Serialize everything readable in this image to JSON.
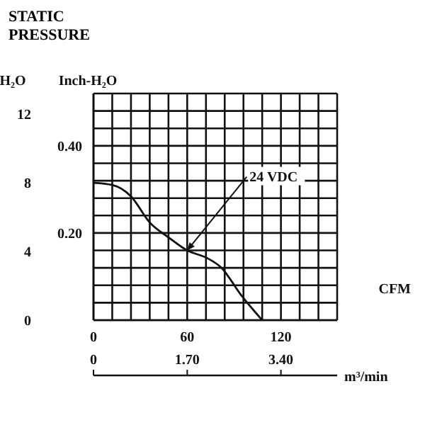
{
  "chart_data": {
    "type": "line",
    "title": "STATIC PRESSURE",
    "xlabel": "CFM",
    "ylabel": "Inch-H₂O",
    "y2label": "H₂O",
    "x2label": "m³/min",
    "x": [
      0,
      12,
      24,
      36,
      48,
      60,
      73,
      82,
      94,
      108
    ],
    "series": [
      {
        "color": "#111111",
        "values": [
          0.315,
          0.31,
          0.284,
          0.224,
          0.19,
          0.16,
          0.142,
          0.12,
          0.06,
          0
        ]
      }
    ],
    "annotations": [
      {
        "text": "24 VDC",
        "x": 60,
        "y": 0.16
      }
    ],
    "xlim": [
      0,
      156
    ],
    "xticks": [
      0,
      {
        "value": 12,
        "label": null
      },
      {
        "value": 24,
        "label": null
      },
      {
        "value": 36,
        "label": null
      },
      {
        "value": 48,
        "label": null
      },
      60,
      {
        "value": 72,
        "label": null
      },
      {
        "value": 84,
        "label": null
      },
      {
        "value": 96,
        "label": null
      },
      {
        "value": 108,
        "label": null
      },
      120,
      {
        "value": 132,
        "label": null
      },
      {
        "value": 144,
        "label": null
      },
      {
        "value": 156,
        "label": null
      }
    ],
    "ylim": [
      0,
      0.52
    ],
    "yticks": [
      {
        "value": 0,
        "label": null
      },
      {
        "value": 0.04,
        "label": null
      },
      {
        "value": 0.08,
        "label": null
      },
      {
        "value": 0.12,
        "label": null
      },
      {
        "value": 0.16,
        "label": null
      },
      {
        "value": 0.2,
        "label": "0.20"
      },
      {
        "value": 0.24,
        "label": null
      },
      {
        "value": 0.28,
        "label": null
      },
      {
        "value": 0.32,
        "label": null
      },
      {
        "value": 0.36,
        "label": null
      },
      {
        "value": 0.4,
        "label": "0.40"
      },
      {
        "value": 0.44,
        "label": null
      },
      {
        "value": 0.48,
        "label": null
      },
      {
        "value": 0.52,
        "label": null
      }
    ],
    "y2lim": [
      0,
      13.2
    ],
    "y2ticks": [
      0,
      4,
      8,
      12
    ],
    "x2lim": [
      0,
      4.42
    ],
    "x2ticks": [
      0,
      {
        "value": 1.7,
        "label": "1.70"
      },
      {
        "value": 3.4,
        "label": "3.40"
      }
    ],
    "grid": true,
    "marker": "none",
    "line_style": "solid",
    "legend": false
  }
}
